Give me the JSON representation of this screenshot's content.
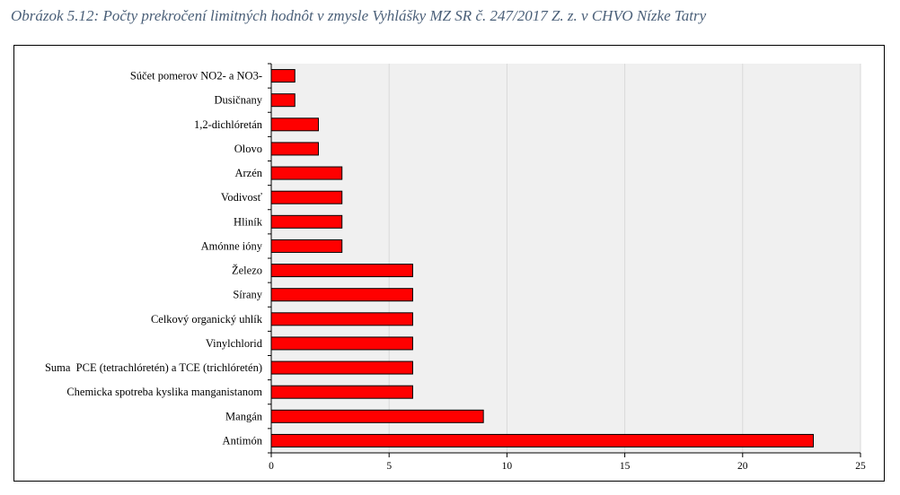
{
  "caption": "Obrázok 5.12: Počty prekročení limitných hodnôt v zmysle Vyhlášky MZ SR č. 247/2017 Z. z. v CHVO Nízke Tatry",
  "chart_data": {
    "type": "bar",
    "orientation": "horizontal",
    "categories": [
      "Súčet pomerov NO2- a NO3-",
      "Dusičnany",
      "1,2-dichlóretán",
      "Olovo",
      "Arzén",
      "Vodivosť",
      "Hliník",
      "Amónne ióny",
      "Železo",
      "Sírany",
      "Celkový organický uhlík",
      "Vinylchlorid",
      "Suma  PCE (tetrachlóretén) a TCE (trichlóretén)",
      "Chemicka spotreba kyslika manganistanom",
      "Mangán",
      "Antimón"
    ],
    "values": [
      1,
      1,
      2,
      2,
      3,
      3,
      3,
      3,
      6,
      6,
      6,
      6,
      6,
      6,
      9,
      23
    ],
    "xlim": [
      0,
      25
    ],
    "xticks": [
      0,
      5,
      10,
      15,
      20,
      25
    ],
    "xlabel": "",
    "ylabel": "",
    "bar_color": "#ff0000",
    "plot_background": "#f0f0f0",
    "grid": true,
    "legend": false
  }
}
